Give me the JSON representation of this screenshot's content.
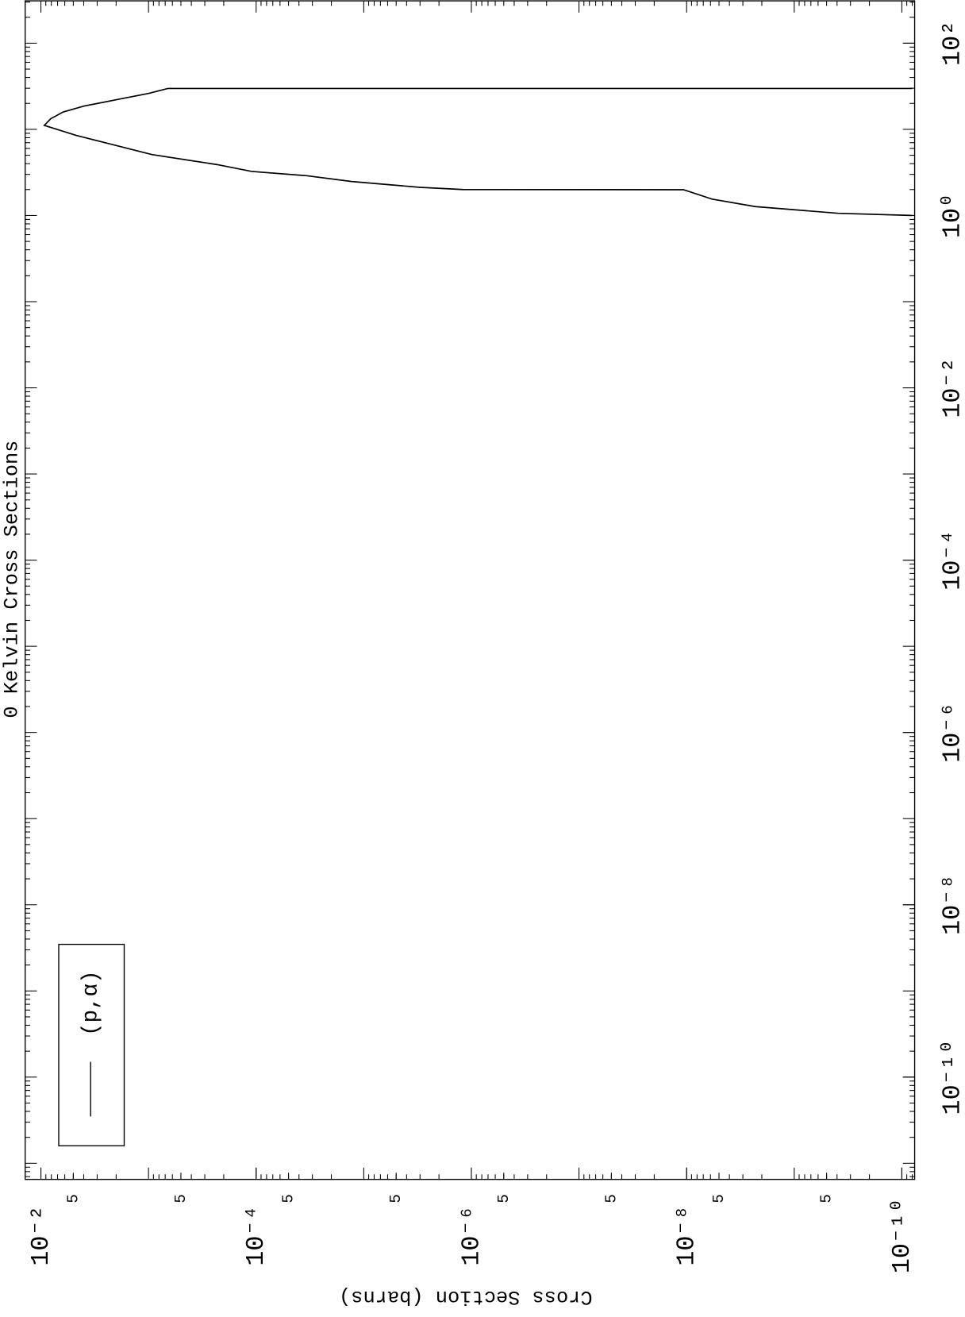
{
  "chart_data": {
    "type": "line",
    "title": "0 Kelvin Cross Sections",
    "ylabel": "Cross Section (barns)",
    "xscale": "log",
    "yscale": "log",
    "xlim": [
      6.5e-12,
      310
    ],
    "ylim": [
      7.6e-11,
      0.014
    ],
    "xticks": [
      {
        "value": 1e-10,
        "label": "10⁻¹⁰"
      },
      {
        "value": 1e-08,
        "label": "10⁻⁸"
      },
      {
        "value": 1e-06,
        "label": "10⁻⁶"
      },
      {
        "value": 0.0001,
        "label": "10⁻⁴"
      },
      {
        "value": 0.01,
        "label": "10⁻²"
      },
      {
        "value": 1,
        "label": "10⁰"
      },
      {
        "value": 100,
        "label": "10²"
      }
    ],
    "yticks": [
      {
        "value": 0.01,
        "label": "10⁻²"
      },
      {
        "value": 0.005,
        "label": "5"
      },
      {
        "value": 0.0005,
        "label": "5"
      },
      {
        "value": 0.0001,
        "label": "10⁻⁴"
      },
      {
        "value": 5e-05,
        "label": "5"
      },
      {
        "value": 5e-06,
        "label": "5"
      },
      {
        "value": 1e-06,
        "label": "10⁻⁶"
      },
      {
        "value": 5e-07,
        "label": "5"
      },
      {
        "value": 5e-08,
        "label": "5"
      },
      {
        "value": 1e-08,
        "label": "10⁻⁸"
      },
      {
        "value": 5e-09,
        "label": "5"
      },
      {
        "value": 5e-10,
        "label": "5"
      },
      {
        "value": 1e-10,
        "label": "10⁻¹⁰"
      }
    ],
    "legend": "lower left",
    "series": [
      {
        "name": "(p,α)",
        "color": "#000000",
        "x": [
          1.0,
          1.06,
          1.27,
          1.55,
          1.99,
          2.0,
          2.12,
          2.48,
          2.9,
          3.25,
          3.9,
          5.1,
          6.8,
          8.5,
          11.1,
          13.3,
          15.9,
          18.6,
          22.3,
          26.1,
          29.8,
          29.8
        ],
        "values": [
          8e-11,
          3.9e-10,
          2.3e-09,
          5.8e-09,
          1.07e-08,
          1.2e-06,
          3e-06,
          1.3e-05,
          3.4e-05,
          0.00011,
          0.00023,
          0.00093,
          0.0023,
          0.0047,
          0.0093,
          0.0081,
          0.0062,
          0.004,
          0.0019,
          0.001,
          0.00066,
          8e-11
        ]
      }
    ]
  }
}
